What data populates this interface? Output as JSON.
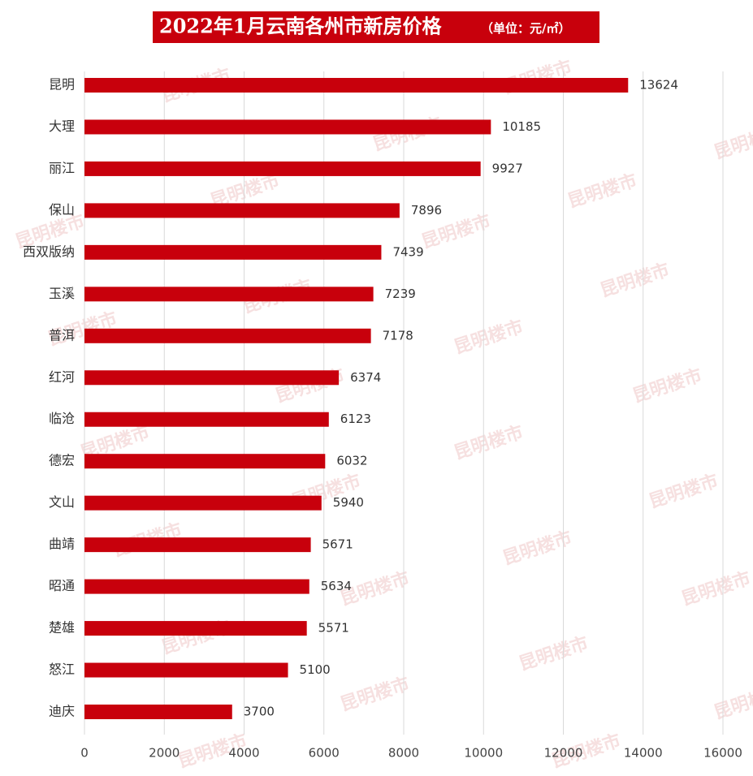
{
  "chart_data": {
    "type": "barh",
    "title": "2022年1月云南各州市新房价格",
    "subtitle": "（单位：元/㎡）",
    "watermark": "昆明楼市",
    "categories": [
      "昆明",
      "大理",
      "丽江",
      "保山",
      "西双版纳",
      "玉溪",
      "普洱",
      "红河",
      "临沧",
      "德宏",
      "文山",
      "曲靖",
      "昭通",
      "楚雄",
      "怒江",
      "迪庆"
    ],
    "values": [
      13624,
      10185,
      9927,
      7896,
      7439,
      7239,
      7178,
      6374,
      6123,
      6032,
      5940,
      5671,
      5634,
      5571,
      5100,
      3700
    ],
    "color": "#c8000c",
    "xlim": [
      0,
      16000
    ],
    "xticks": [
      0,
      2000,
      4000,
      6000,
      8000,
      10000,
      12000,
      14000,
      16000
    ],
    "grid": true
  }
}
